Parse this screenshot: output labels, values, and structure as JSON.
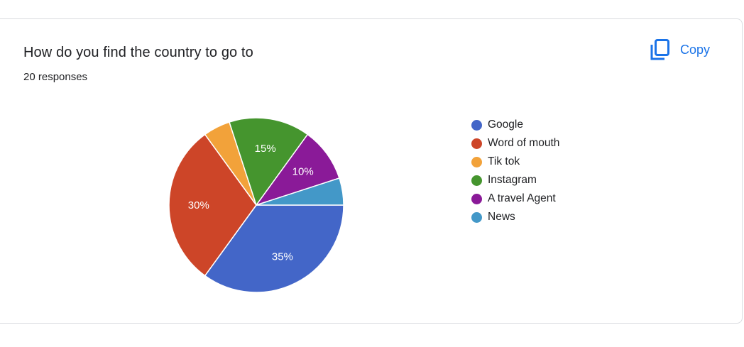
{
  "question": {
    "title": "How do you find the country to go to",
    "responses": "20 responses"
  },
  "copy_button": {
    "label": "Copy",
    "icon": "copy-icon",
    "color": "#1a73e8"
  },
  "chart_data": {
    "type": "pie",
    "categories": [
      "Google",
      "Word of mouth",
      "Tik tok",
      "Instagram",
      "A travel Agent",
      "News"
    ],
    "values": [
      35,
      30,
      5,
      15,
      10,
      5
    ],
    "data_labels": [
      "35%",
      "30%",
      "",
      "15%",
      "10%",
      ""
    ],
    "colors": [
      "#4366c8",
      "#cd4528",
      "#f2a23a",
      "#45952e",
      "#8a1a98",
      "#4398c8"
    ],
    "legend_position": "right"
  }
}
